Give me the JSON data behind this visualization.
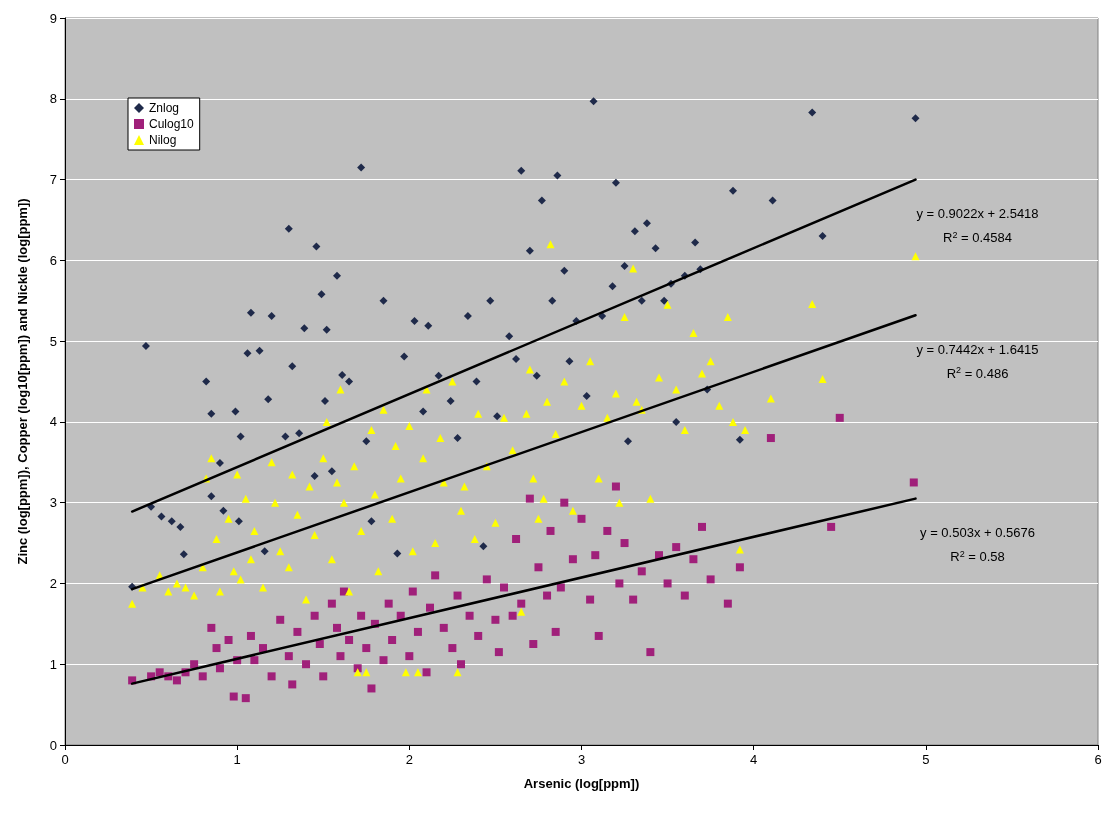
{
  "chart_data": {
    "type": "scatter",
    "xlabel": "Arsenic (log[ppm])",
    "ylabel": "Zinc (log[ppm]), Copper (log10[ppm]) and Nickle (log[ppm])",
    "xlim": [
      0,
      6
    ],
    "xticks": [
      0,
      1,
      2,
      3,
      4,
      5,
      6
    ],
    "ylim": [
      0,
      9
    ],
    "yticks": [
      0,
      1,
      2,
      3,
      4,
      5,
      6,
      7,
      8,
      9
    ],
    "grid": "y",
    "legend": "top left",
    "series": [
      {
        "name": "Znlog",
        "marker": "diamond",
        "color": "#1f2a4a",
        "x": [
          0.39,
          0.5,
          0.56,
          0.62,
          0.67,
          0.47,
          0.69,
          0.82,
          0.85,
          0.85,
          0.9,
          0.92,
          0.99,
          1.02,
          1.01,
          1.08,
          1.06,
          1.13,
          1.16,
          1.18,
          1.2,
          1.28,
          1.3,
          1.32,
          1.36,
          1.39,
          1.45,
          1.46,
          1.49,
          1.51,
          1.52,
          1.55,
          1.58,
          1.61,
          1.65,
          1.72,
          1.75,
          1.78,
          1.85,
          1.93,
          1.97,
          2.03,
          2.08,
          2.11,
          2.17,
          2.24,
          2.28,
          2.34,
          2.39,
          2.43,
          2.47,
          2.51,
          2.58,
          2.62,
          2.65,
          2.7,
          2.74,
          2.77,
          2.83,
          2.86,
          2.9,
          2.93,
          2.97,
          3.03,
          3.07,
          3.12,
          3.18,
          3.2,
          3.25,
          3.27,
          3.31,
          3.35,
          3.38,
          3.43,
          3.48,
          3.52,
          3.55,
          3.6,
          3.66,
          3.69,
          3.73,
          3.88,
          3.92,
          4.11,
          4.34,
          4.4,
          4.94
        ],
        "values": [
          1.96,
          2.95,
          2.83,
          2.77,
          2.7,
          4.94,
          2.36,
          4.5,
          4.1,
          3.08,
          3.49,
          2.9,
          4.13,
          3.82,
          2.77,
          5.35,
          4.85,
          4.88,
          2.4,
          4.28,
          5.31,
          3.82,
          6.39,
          4.69,
          3.86,
          5.16,
          3.33,
          6.17,
          5.58,
          4.26,
          5.14,
          3.39,
          5.81,
          4.58,
          4.5,
          7.15,
          3.76,
          2.77,
          5.5,
          2.37,
          4.81,
          5.25,
          4.13,
          5.19,
          4.57,
          4.26,
          3.8,
          5.31,
          4.5,
          2.46,
          5.5,
          4.07,
          5.06,
          4.78,
          7.11,
          6.12,
          4.57,
          6.74,
          5.5,
          7.05,
          5.87,
          4.75,
          5.25,
          4.32,
          7.97,
          5.31,
          5.68,
          6.96,
          5.93,
          3.76,
          6.36,
          5.5,
          6.46,
          6.15,
          5.5,
          5.71,
          4.0,
          5.81,
          6.22,
          5.89,
          4.4,
          6.86,
          3.78,
          6.74,
          7.83,
          6.3,
          7.76
        ]
      },
      {
        "name": "Culog10",
        "marker": "square",
        "color": "#a0207a",
        "x": [
          0.39,
          0.5,
          0.55,
          0.6,
          0.65,
          0.7,
          0.75,
          0.8,
          0.85,
          0.88,
          0.9,
          0.95,
          0.98,
          1.0,
          1.05,
          1.08,
          1.1,
          1.15,
          1.2,
          1.25,
          1.3,
          1.32,
          1.35,
          1.4,
          1.45,
          1.48,
          1.5,
          1.55,
          1.58,
          1.6,
          1.62,
          1.65,
          1.7,
          1.72,
          1.75,
          1.78,
          1.8,
          1.85,
          1.88,
          1.9,
          1.95,
          2.0,
          2.02,
          2.05,
          2.1,
          2.12,
          2.15,
          2.2,
          2.25,
          2.28,
          2.3,
          2.35,
          2.4,
          2.45,
          2.5,
          2.52,
          2.55,
          2.6,
          2.62,
          2.65,
          2.7,
          2.72,
          2.75,
          2.8,
          2.82,
          2.85,
          2.88,
          2.9,
          2.95,
          3.0,
          3.05,
          3.08,
          3.1,
          3.15,
          3.2,
          3.22,
          3.25,
          3.3,
          3.35,
          3.4,
          3.45,
          3.5,
          3.55,
          3.6,
          3.65,
          3.7,
          3.75,
          3.85,
          3.92,
          4.1,
          4.45,
          4.5,
          4.93
        ],
        "values": [
          0.8,
          0.85,
          0.9,
          0.85,
          0.8,
          0.9,
          1.0,
          0.85,
          1.45,
          1.2,
          0.95,
          1.3,
          0.6,
          1.05,
          0.58,
          1.35,
          1.05,
          1.2,
          0.85,
          1.55,
          1.1,
          0.75,
          1.4,
          1.0,
          1.6,
          1.25,
          0.85,
          1.75,
          1.45,
          1.1,
          1.9,
          1.3,
          0.95,
          1.6,
          1.2,
          0.7,
          1.5,
          1.05,
          1.75,
          1.3,
          1.6,
          1.1,
          1.9,
          1.4,
          0.9,
          1.7,
          2.1,
          1.45,
          1.2,
          1.85,
          1.0,
          1.6,
          1.35,
          2.05,
          1.55,
          1.15,
          1.95,
          1.6,
          2.55,
          1.75,
          3.05,
          1.25,
          2.2,
          1.85,
          2.65,
          1.4,
          1.95,
          3.0,
          2.3,
          2.8,
          1.8,
          2.35,
          1.35,
          2.65,
          3.2,
          2.0,
          2.5,
          1.8,
          2.15,
          1.15,
          2.35,
          2.0,
          2.45,
          1.85,
          2.3,
          2.7,
          2.05,
          1.75,
          2.2,
          3.8,
          2.7,
          4.05,
          3.25
        ]
      },
      {
        "name": "Nilog",
        "marker": "triangle",
        "color": "#ffff00",
        "x": [
          0.39,
          0.45,
          0.55,
          0.6,
          0.65,
          0.7,
          0.75,
          0.8,
          0.82,
          0.85,
          0.88,
          0.9,
          0.95,
          0.98,
          1.0,
          1.02,
          1.05,
          1.08,
          1.1,
          1.15,
          1.2,
          1.22,
          1.25,
          1.3,
          1.32,
          1.35,
          1.4,
          1.42,
          1.45,
          1.5,
          1.52,
          1.55,
          1.58,
          1.6,
          1.62,
          1.65,
          1.68,
          1.7,
          1.72,
          1.75,
          1.78,
          1.8,
          1.82,
          1.85,
          1.9,
          1.92,
          1.95,
          1.98,
          2.0,
          2.02,
          2.05,
          2.08,
          2.1,
          2.15,
          2.18,
          2.2,
          2.25,
          2.28,
          2.3,
          2.32,
          2.38,
          2.4,
          2.45,
          2.5,
          2.55,
          2.6,
          2.65,
          2.68,
          2.7,
          2.72,
          2.75,
          2.78,
          2.8,
          2.82,
          2.85,
          2.9,
          2.95,
          3.0,
          3.05,
          3.1,
          3.15,
          3.2,
          3.22,
          3.25,
          3.3,
          3.32,
          3.35,
          3.4,
          3.45,
          3.5,
          3.55,
          3.6,
          3.65,
          3.7,
          3.75,
          3.8,
          3.85,
          3.88,
          3.95,
          3.92,
          4.1,
          4.34,
          4.4,
          4.94
        ],
        "values": [
          1.75,
          1.95,
          2.1,
          1.9,
          2.0,
          1.95,
          1.85,
          2.2,
          3.3,
          3.55,
          2.55,
          1.9,
          2.8,
          2.15,
          3.35,
          2.05,
          3.05,
          2.3,
          2.65,
          1.95,
          3.5,
          3.0,
          2.4,
          2.2,
          3.35,
          2.85,
          1.8,
          3.2,
          2.6,
          3.55,
          4.0,
          2.3,
          3.25,
          4.4,
          3.0,
          1.9,
          3.45,
          0.9,
          2.65,
          0.9,
          3.9,
          3.1,
          2.15,
          4.15,
          2.8,
          3.7,
          3.3,
          0.9,
          3.95,
          2.4,
          0.9,
          3.55,
          4.4,
          2.5,
          3.8,
          3.25,
          4.5,
          0.9,
          2.9,
          3.2,
          2.55,
          4.1,
          3.45,
          2.75,
          4.05,
          3.65,
          1.65,
          4.1,
          4.65,
          3.3,
          2.8,
          3.05,
          4.25,
          6.2,
          3.85,
          4.5,
          2.9,
          4.2,
          4.75,
          3.3,
          4.05,
          4.35,
          3.0,
          5.3,
          5.9,
          4.25,
          4.15,
          3.05,
          4.55,
          5.45,
          4.4,
          3.9,
          5.1,
          4.6,
          4.75,
          4.2,
          5.3,
          4.0,
          3.9,
          2.42,
          4.29,
          5.46,
          4.53,
          6.05
        ]
      },
      {
        "type": "line",
        "marker": "none",
        "color": "#000000",
        "x": [
          0.39,
          4.94
        ],
        "values": [
          2.89,
          7.0
        ]
      },
      {
        "type": "line",
        "marker": "none",
        "color": "#000000",
        "x": [
          0.39,
          4.94
        ],
        "values": [
          1.93,
          5.32
        ]
      },
      {
        "type": "line",
        "marker": "none",
        "color": "#000000",
        "x": [
          0.39,
          4.94
        ],
        "values": [
          0.76,
          3.05
        ]
      }
    ],
    "annotations": [
      "y = 0.9022x + 2.5418",
      "R$^{2}$ = 0.4584",
      "y = 0.7442x + 1.6415",
      "R$^{2}$ = 0.486",
      "y = 0.503x + 0.5676",
      "R$^{2}$ = 0.58"
    ]
  }
}
